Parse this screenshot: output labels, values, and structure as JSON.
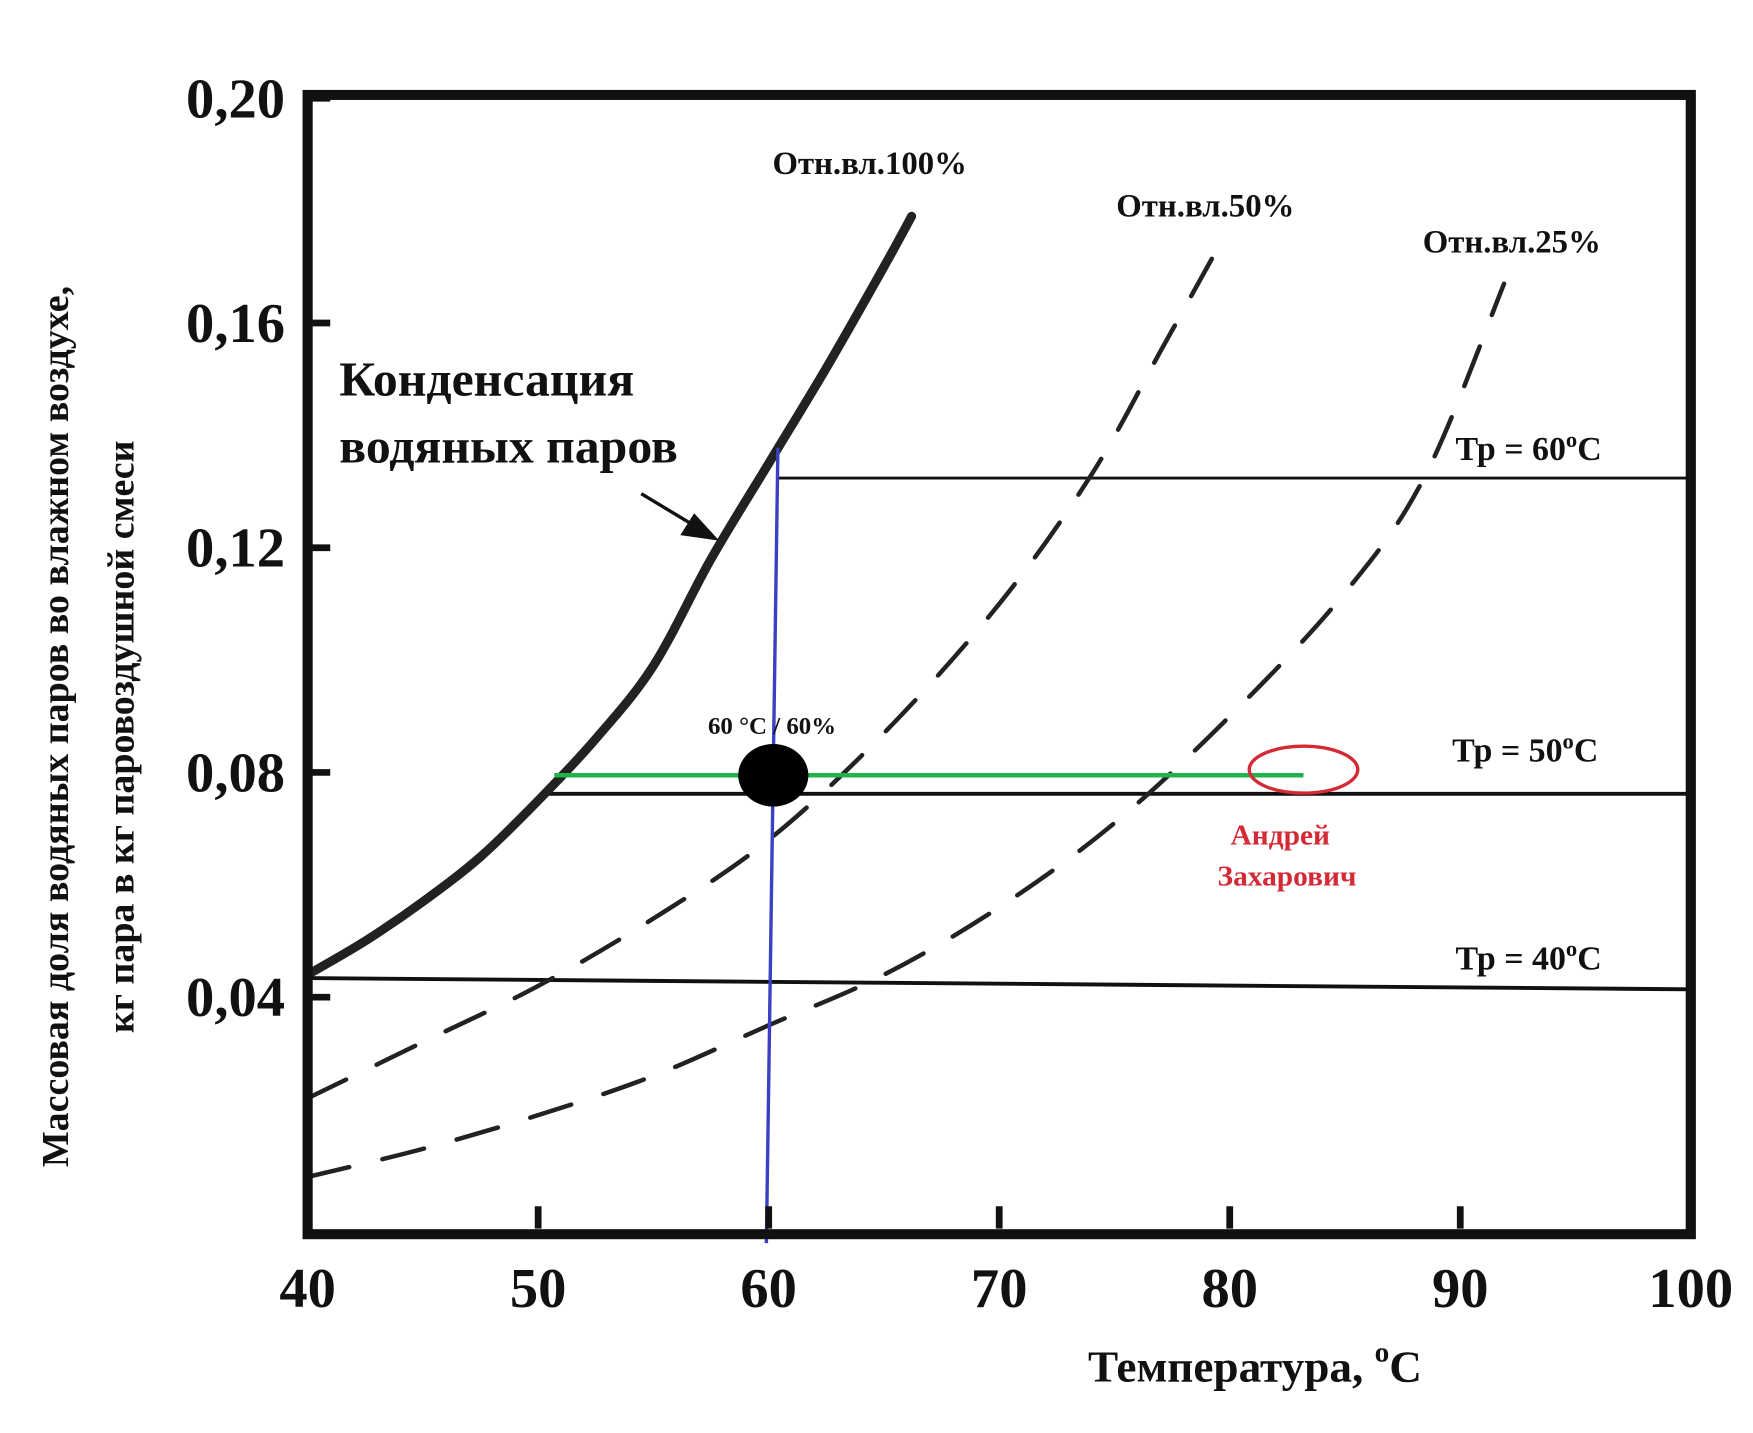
{
  "chart_data": {
    "type": "line",
    "title": "",
    "xlabel": "Температура, ",
    "xlabel_unit": "°C",
    "ylabel_lines": [
      "Массовая доля водяных паров во влажном воздухе,",
      "кг пара в кг паровоздушной смеси"
    ],
    "xlim": [
      40,
      100
    ],
    "ylim": [
      0,
      0.2
    ],
    "x_ticks": [
      40,
      50,
      60,
      70,
      80,
      90,
      100
    ],
    "x_tick_labels": [
      "40",
      "50",
      "60",
      "70",
      "80",
      "90",
      "100"
    ],
    "y_ticks": [
      0.04,
      0.08,
      0.12,
      0.16,
      0.2
    ],
    "y_tick_labels": [
      "0,04",
      "0,08",
      "0,12",
      "0,16",
      "0,20"
    ],
    "grid": false,
    "series": [
      {
        "name": "Отн.вл.100%",
        "style": "solid",
        "x": [
          40,
          42.5,
          45,
          47.5,
          50,
          52.5,
          55,
          57.5,
          60,
          62.5,
          65,
          66.2
        ],
        "y": [
          0.044,
          0.05,
          0.057,
          0.065,
          0.075,
          0.086,
          0.099,
          0.118,
          0.135,
          0.152,
          0.17,
          0.179
        ]
      },
      {
        "name": "Отн.вл.50%",
        "style": "dashed",
        "x": [
          40,
          45,
          50,
          55,
          60,
          65,
          70,
          74,
          77,
          79.3
        ],
        "y": [
          0.022,
          0.032,
          0.042,
          0.054,
          0.068,
          0.087,
          0.11,
          0.133,
          0.155,
          0.172
        ]
      },
      {
        "name": "Отн.вл.25%",
        "style": "dashed",
        "x": [
          40,
          45,
          50,
          55,
          60,
          65,
          70,
          75,
          80,
          85,
          88.5,
          91.9
        ],
        "y": [
          0.008,
          0.013,
          0.019,
          0.026,
          0.035,
          0.044,
          0.056,
          0.071,
          0.09,
          0.112,
          0.133,
          0.167
        ]
      }
    ],
    "dew_lines": [
      {
        "label": "Тр = 60",
        "unit": "°C",
        "x": [
          60.4,
          100
        ],
        "y": [
          0.1324,
          0.1324
        ]
      },
      {
        "label": "Тр = 50",
        "unit": "°C",
        "x": [
          50.3,
          100
        ],
        "y": [
          0.0762,
          0.0762
        ]
      },
      {
        "label": "Тр = 40",
        "unit": "°C",
        "x": [
          40,
          100
        ],
        "y": [
          0.0434,
          0.0414
        ]
      }
    ],
    "annotations": {
      "condensation": [
        "Конденсация",
        "водяных паров"
      ],
      "point_label": "60 °C / 60%",
      "point": {
        "x": 60.2,
        "y": 0.0795
      },
      "vertical_line": {
        "x_top": 60.4,
        "x_bottom": 59.9,
        "y_top": 0.1378,
        "y_bottom": 0
      },
      "green_line": {
        "x": [
          50.7,
          83.2
        ],
        "y": 0.0795
      },
      "red_ellipse_center": {
        "x": 83.2,
        "y": 0.0805
      },
      "author": [
        "Андрей",
        "Захарович"
      ]
    },
    "colors": {
      "vertical": "#3a3fc4",
      "horizontal": "#22b24c",
      "highlight": "#d42a35",
      "ink": "#111111"
    }
  }
}
